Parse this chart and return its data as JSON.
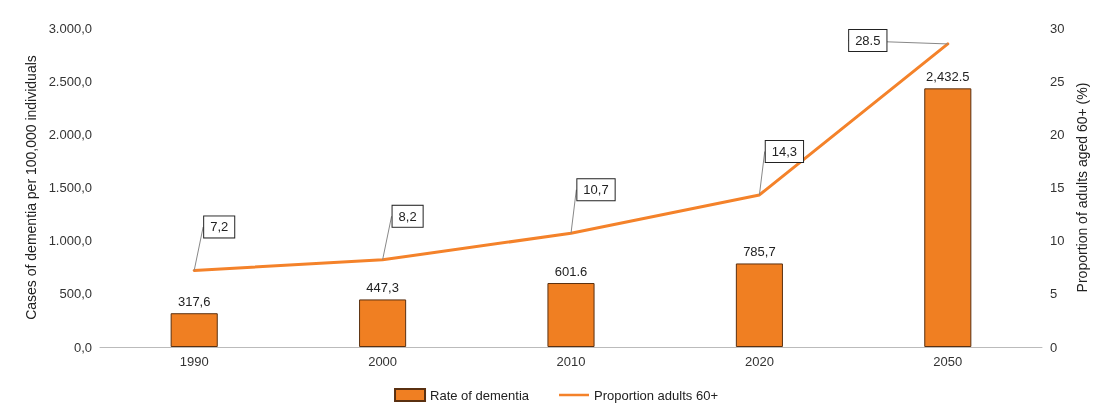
{
  "chart_data": {
    "type": "bar",
    "categories": [
      "1990",
      "2000",
      "2010",
      "2020",
      "2050"
    ],
    "ylabel": "Cases of dementia per 100,000 individuals",
    "y2label": "Proportion of adults aged 60+ (%)",
    "ylim": [
      0,
      3000
    ],
    "yticks": [
      {
        "value": 0,
        "label": "0,0"
      },
      {
        "value": 500,
        "label": "500,0"
      },
      {
        "value": 1000,
        "label": "1.000,0"
      },
      {
        "value": 1500,
        "label": "1.500,0"
      },
      {
        "value": 2000,
        "label": "2.000,0"
      },
      {
        "value": 2500,
        "label": "2.500,0"
      },
      {
        "value": 3000,
        "label": "3.000,0"
      }
    ],
    "y2lim": [
      0,
      30
    ],
    "y2ticks": [
      0,
      5,
      10,
      15,
      20,
      25,
      30
    ],
    "series": [
      {
        "name": "Rate of dementia",
        "color": "#f07f22",
        "values": [
          317.6,
          447.3,
          601.6,
          785.7,
          2432.5
        ],
        "value_labels": [
          "317,6",
          "447,3",
          "601.6",
          "785,7",
          "2,432.5"
        ]
      },
      {
        "name": "Proportion adults 60+",
        "type": "line",
        "axis": "y2",
        "color": "#f4822a",
        "values": [
          7.2,
          8.2,
          10.7,
          14.3,
          28.5
        ],
        "value_labels": [
          "7,2",
          "8,2",
          "10,7",
          "14,3",
          "28.5"
        ]
      }
    ],
    "legend": "bottom",
    "grid": false,
    "marker": "none"
  }
}
